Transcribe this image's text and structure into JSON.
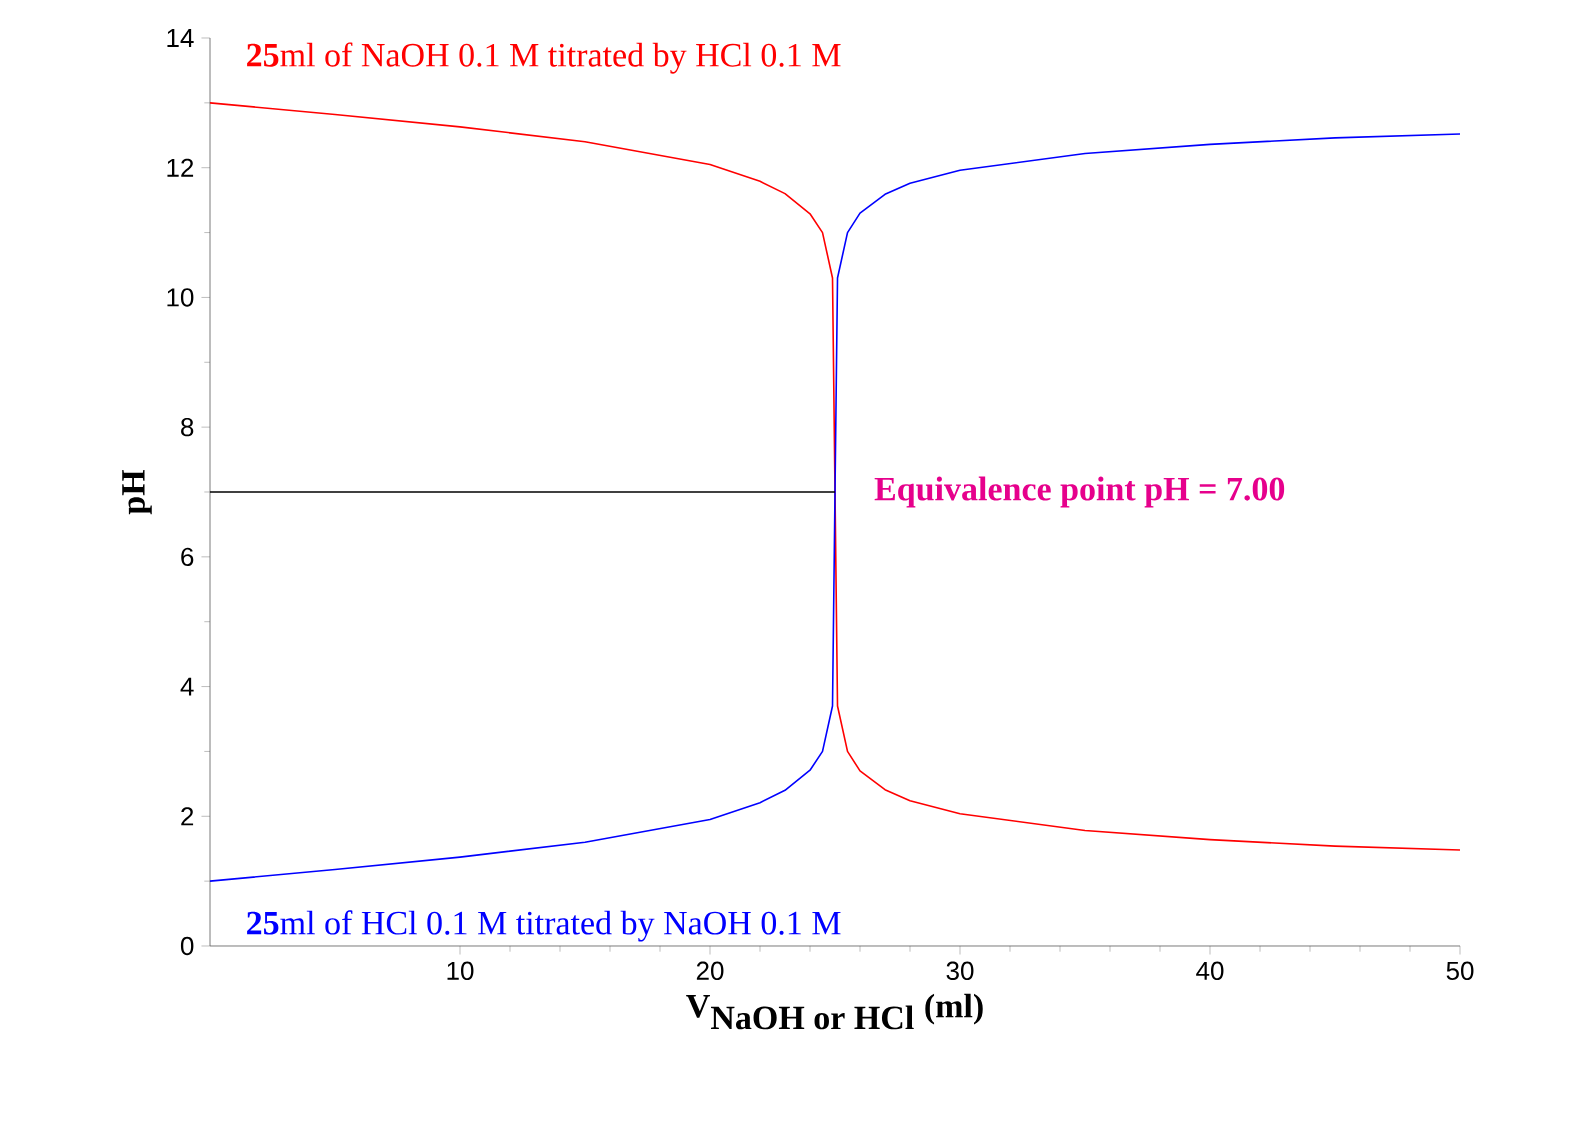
{
  "chart_data": {
    "type": "line",
    "xlabel": "\\textbf{V}_{\\textbf{NaOH or HCl}}\\ \\textbf{(ml)}",
    "ylabel": "pH",
    "xlim": [
      0,
      50
    ],
    "ylim": [
      0,
      14
    ],
    "xticks": [
      10,
      20,
      30,
      40,
      50
    ],
    "yticks": [
      0,
      2,
      4,
      6,
      8,
      10,
      12,
      14
    ],
    "series": [
      {
        "name": "**25**ml of NaOH 0.1 M titrated by HCl 0.1 M",
        "color": "#ff0000",
        "x": [
          0,
          5,
          10,
          15,
          20,
          22,
          23,
          24,
          24.5,
          24.9,
          25,
          25.1,
          25.5,
          26,
          27,
          28,
          30,
          35,
          40,
          45,
          50
        ],
        "values": [
          13.0,
          12.82,
          12.63,
          12.4,
          12.05,
          11.79,
          11.6,
          11.29,
          11.0,
          10.3,
          null,
          3.7,
          3.0,
          2.7,
          2.41,
          2.24,
          2.04,
          1.78,
          1.64,
          1.54,
          1.48
        ]
      },
      {
        "name": "**25**ml of HCl 0.1 M titrated by NaOH 0.1 M",
        "color": "#0000ff",
        "x": [
          0,
          5,
          10,
          15,
          20,
          22,
          23,
          24,
          24.5,
          24.9,
          25,
          25.1,
          25.5,
          26,
          27,
          28,
          30,
          35,
          40,
          45,
          50
        ],
        "values": [
          1.0,
          1.18,
          1.37,
          1.6,
          1.95,
          2.21,
          2.4,
          2.71,
          3.0,
          3.7,
          7.0,
          10.3,
          11.0,
          11.3,
          11.59,
          11.76,
          11.96,
          12.22,
          12.36,
          12.46,
          12.52
        ]
      },
      {
        "color": "#000000",
        "x": [
          0,
          25
        ],
        "values": [
          7,
          7
        ]
      }
    ],
    "annotations": [
      {
        "text": "Equivalence point pH = 7.00",
        "x": 25,
        "y": 7
      }
    ]
  }
}
